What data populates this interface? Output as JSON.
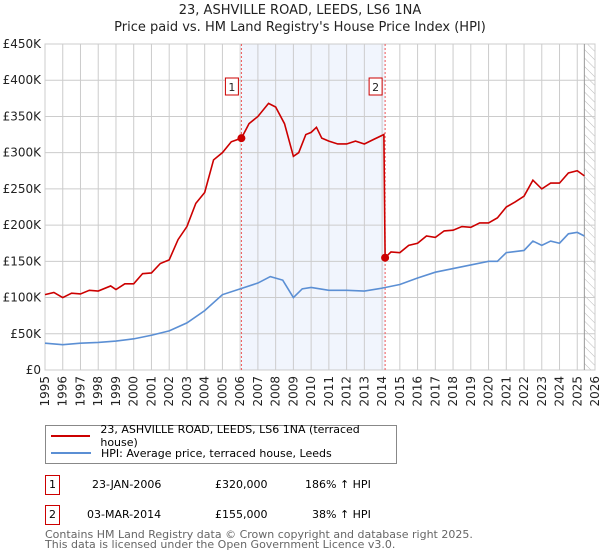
{
  "chart_data": {
    "type": "line",
    "title": "23, ASHVILLE ROAD, LEEDS, LS6 1NA",
    "subtitle": "Price paid vs. HM Land Registry's House Price Index (HPI)",
    "xlim": [
      1995,
      2026
    ],
    "ylim": [
      0,
      450000
    ],
    "x_ticks": [
      "1995",
      "1996",
      "1997",
      "1998",
      "1999",
      "2000",
      "2001",
      "2002",
      "2003",
      "2004",
      "2005",
      "2006",
      "2007",
      "2008",
      "2009",
      "2010",
      "2011",
      "2012",
      "2013",
      "2014",
      "2015",
      "2016",
      "2017",
      "2018",
      "2019",
      "2020",
      "2021",
      "2022",
      "2023",
      "2024",
      "2025",
      "2026"
    ],
    "y_ticks": [
      {
        "v": 0,
        "label": "£0"
      },
      {
        "v": 50000,
        "label": "£50K"
      },
      {
        "v": 100000,
        "label": "£100K"
      },
      {
        "v": 150000,
        "label": "£150K"
      },
      {
        "v": 200000,
        "label": "£200K"
      },
      {
        "v": 250000,
        "label": "£250K"
      },
      {
        "v": 300000,
        "label": "£300K"
      },
      {
        "v": 350000,
        "label": "£350K"
      },
      {
        "v": 400000,
        "label": "£400K"
      },
      {
        "v": 450000,
        "label": "£450K"
      }
    ],
    "grid": true,
    "shaded_range": [
      2006.07,
      2014.17
    ],
    "forecast_hatch_from": 2025.4,
    "series": [
      {
        "name": "23, ASHVILLE ROAD, LEEDS, LS6 1NA (terraced house)",
        "color": "#cc0000",
        "x": [
          1995,
          1995.5,
          1996,
          1996.5,
          1997,
          1997.5,
          1998,
          1998.7,
          1999,
          1999.5,
          2000,
          2000.5,
          2001,
          2001.5,
          2002,
          2002.5,
          2003,
          2003.5,
          2004,
          2004.5,
          2005,
          2005.5,
          2006.07,
          2006.5,
          2007,
          2007.6,
          2008,
          2008.5,
          2009,
          2009.3,
          2009.7,
          2010,
          2010.3,
          2010.6,
          2011,
          2011.5,
          2012,
          2012.5,
          2013,
          2013.5,
          2014.1,
          2014.17,
          2014.5,
          2015,
          2015.5,
          2016,
          2016.5,
          2017,
          2017.5,
          2018,
          2018.5,
          2019,
          2019.5,
          2020,
          2020.5,
          2021,
          2021.5,
          2022,
          2022.5,
          2023,
          2023.5,
          2024,
          2024.5,
          2025,
          2025.4
        ],
        "y": [
          104,
          107,
          100,
          106,
          105,
          110,
          109,
          116,
          111,
          119,
          119,
          133,
          134,
          147,
          152,
          180,
          198,
          230,
          245,
          290,
          300,
          315,
          320,
          340,
          350,
          368,
          363,
          340,
          295,
          300,
          325,
          328,
          335,
          320,
          316,
          312,
          312,
          316,
          312,
          318,
          325,
          155,
          163,
          162,
          172,
          175,
          185,
          183,
          192,
          193,
          198,
          197,
          203,
          203,
          210,
          225,
          232,
          240,
          262,
          250,
          258,
          258,
          272,
          275,
          268
        ],
        "y_unit": "thousand GBP"
      },
      {
        "name": "HPI: Average price, terraced house, Leeds",
        "color": "#5b8fd4",
        "x": [
          1995,
          1996,
          1997,
          1998,
          1999,
          2000,
          2001,
          2002,
          2003,
          2004,
          2005,
          2006,
          2007,
          2007.7,
          2008.4,
          2009,
          2009.5,
          2010,
          2011,
          2012,
          2013,
          2014,
          2015,
          2016,
          2017,
          2018,
          2019,
          2020,
          2020.5,
          2021,
          2022,
          2022.5,
          2023,
          2023.5,
          2024,
          2024.5,
          2025,
          2025.4
        ],
        "y": [
          37,
          35,
          37,
          38,
          40,
          43,
          48,
          54,
          65,
          82,
          104,
          112,
          120,
          129,
          124,
          100,
          112,
          114,
          110,
          110,
          109,
          113,
          118,
          127,
          135,
          140,
          145,
          150,
          150,
          162,
          165,
          178,
          172,
          178,
          175,
          188,
          190,
          185
        ],
        "y_unit": "thousand GBP"
      }
    ],
    "annotations": [
      {
        "label": "1",
        "x": 2006.07,
        "y": 320
      },
      {
        "label": "2",
        "x": 2014.17,
        "y": 155
      }
    ]
  },
  "legend": {
    "property": "23, ASHVILLE ROAD, LEEDS, LS6 1NA (terraced house)",
    "hpi": "HPI: Average price, terraced house, Leeds"
  },
  "transactions": [
    {
      "num": "1",
      "date": "23-JAN-2006",
      "price": "£320,000",
      "hpi": "186% ↑ HPI"
    },
    {
      "num": "2",
      "date": "03-MAR-2014",
      "price": "£155,000",
      "hpi": "38% ↑ HPI"
    }
  ],
  "footer": {
    "line1": "Contains HM Land Registry data © Crown copyright and database right 2025.",
    "line2": "This data is licensed under the Open Government Licence v3.0."
  }
}
